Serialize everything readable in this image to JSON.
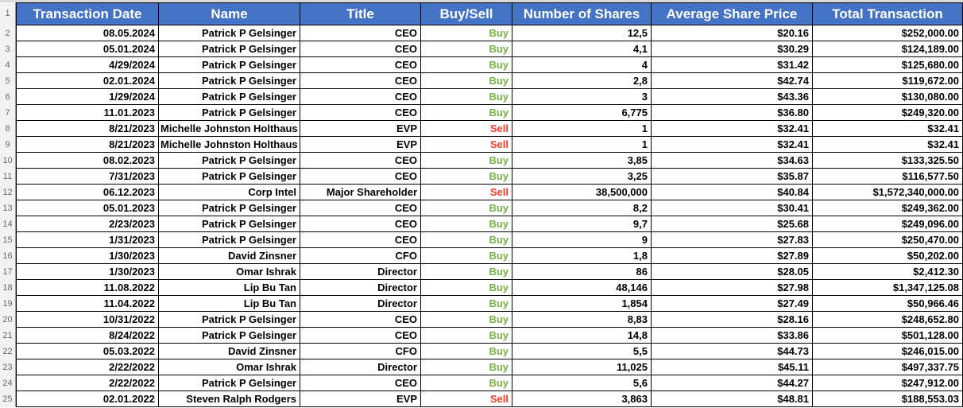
{
  "colors": {
    "header_bg": "#4472C4",
    "header_text": "#FFFFFF",
    "buy_text": "#74B244",
    "sell_text": "#FA3B26",
    "grid": "#000000",
    "gutter_bg": "#F2F2F2",
    "gutter_border": "#9A9A9A",
    "gutter_text": "#696969"
  },
  "table": {
    "header": {
      "row_num": "1",
      "cells": [
        "Transaction Date",
        "Name",
        "Title",
        "Buy/Sell",
        "Number of Shares",
        "Average Share Price",
        "Total Transaction"
      ]
    },
    "rows": [
      {
        "n": "2",
        "date": "08.05.2024",
        "name": "Patrick P Gelsinger",
        "title": "CEO",
        "side": "Buy",
        "shares": "12,5",
        "price": "$20.16",
        "total": "$252,000.00"
      },
      {
        "n": "3",
        "date": "05.01.2024",
        "name": "Patrick P Gelsinger",
        "title": "CEO",
        "side": "Buy",
        "shares": "4,1",
        "price": "$30.29",
        "total": "$124,189.00"
      },
      {
        "n": "4",
        "date": "4/29/2024",
        "name": "Patrick P Gelsinger",
        "title": "CEO",
        "side": "Buy",
        "shares": "4",
        "price": "$31.42",
        "total": "$125,680.00"
      },
      {
        "n": "5",
        "date": "02.01.2024",
        "name": "Patrick P Gelsinger",
        "title": "CEO",
        "side": "Buy",
        "shares": "2,8",
        "price": "$42.74",
        "total": "$119,672.00"
      },
      {
        "n": "6",
        "date": "1/29/2024",
        "name": "Patrick P Gelsinger",
        "title": "CEO",
        "side": "Buy",
        "shares": "3",
        "price": "$43.36",
        "total": "$130,080.00"
      },
      {
        "n": "7",
        "date": "11.01.2023",
        "name": "Patrick P Gelsinger",
        "title": "CEO",
        "side": "Buy",
        "shares": "6,775",
        "price": "$36.80",
        "total": "$249,320.00"
      },
      {
        "n": "8",
        "date": "8/21/2023",
        "name": "Michelle Johnston Holthaus",
        "title": "EVP",
        "side": "Sell",
        "shares": "1",
        "price": "$32.41",
        "total": "$32.41"
      },
      {
        "n": "9",
        "date": "8/21/2023",
        "name": "Michelle Johnston Holthaus",
        "title": "EVP",
        "side": "Sell",
        "shares": "1",
        "price": "$32.41",
        "total": "$32.41"
      },
      {
        "n": "10",
        "date": "08.02.2023",
        "name": "Patrick P Gelsinger",
        "title": "CEO",
        "side": "Buy",
        "shares": "3,85",
        "price": "$34.63",
        "total": "$133,325.50"
      },
      {
        "n": "11",
        "date": "7/31/2023",
        "name": "Patrick P Gelsinger",
        "title": "CEO",
        "side": "Buy",
        "shares": "3,25",
        "price": "$35.87",
        "total": "$116,577.50"
      },
      {
        "n": "12",
        "date": "06.12.2023",
        "name": "Corp Intel",
        "title": "Major Shareholder",
        "side": "Sell",
        "shares": "38,500,000",
        "price": "$40.84",
        "total": "$1,572,340,000.00"
      },
      {
        "n": "13",
        "date": "05.01.2023",
        "name": "Patrick P Gelsinger",
        "title": "CEO",
        "side": "Buy",
        "shares": "8,2",
        "price": "$30.41",
        "total": "$249,362.00"
      },
      {
        "n": "14",
        "date": "2/23/2023",
        "name": "Patrick P Gelsinger",
        "title": "CEO",
        "side": "Buy",
        "shares": "9,7",
        "price": "$25.68",
        "total": "$249,096.00"
      },
      {
        "n": "15",
        "date": "1/31/2023",
        "name": "Patrick P Gelsinger",
        "title": "CEO",
        "side": "Buy",
        "shares": "9",
        "price": "$27.83",
        "total": "$250,470.00"
      },
      {
        "n": "16",
        "date": "1/30/2023",
        "name": "David Zinsner",
        "title": "CFO",
        "side": "Buy",
        "shares": "1,8",
        "price": "$27.89",
        "total": "$50,202.00"
      },
      {
        "n": "17",
        "date": "1/30/2023",
        "name": "Omar Ishrak",
        "title": "Director",
        "side": "Buy",
        "shares": "86",
        "price": "$28.05",
        "total": "$2,412.30"
      },
      {
        "n": "18",
        "date": "11.08.2022",
        "name": "Lip Bu Tan",
        "title": "Director",
        "side": "Buy",
        "shares": "48,146",
        "price": "$27.98",
        "total": "$1,347,125.08"
      },
      {
        "n": "19",
        "date": "11.04.2022",
        "name": "Lip Bu Tan",
        "title": "Director",
        "side": "Buy",
        "shares": "1,854",
        "price": "$27.49",
        "total": "$50,966.46"
      },
      {
        "n": "20",
        "date": "10/31/2022",
        "name": "Patrick P Gelsinger",
        "title": "CEO",
        "side": "Buy",
        "shares": "8,83",
        "price": "$28.16",
        "total": "$248,652.80"
      },
      {
        "n": "21",
        "date": "8/24/2022",
        "name": "Patrick P Gelsinger",
        "title": "CEO",
        "side": "Buy",
        "shares": "14,8",
        "price": "$33.86",
        "total": "$501,128.00"
      },
      {
        "n": "22",
        "date": "05.03.2022",
        "name": "David Zinsner",
        "title": "CFO",
        "side": "Buy",
        "shares": "5,5",
        "price": "$44.73",
        "total": "$246,015.00"
      },
      {
        "n": "23",
        "date": "2/22/2022",
        "name": "Omar Ishrak",
        "title": "Director",
        "side": "Buy",
        "shares": "11,025",
        "price": "$45.11",
        "total": "$497,337.75"
      },
      {
        "n": "24",
        "date": "2/22/2022",
        "name": "Patrick P Gelsinger",
        "title": "CEO",
        "side": "Buy",
        "shares": "5,6",
        "price": "$44.27",
        "total": "$247,912.00"
      },
      {
        "n": "25",
        "date": "02.01.2022",
        "name": "Steven Ralph Rodgers",
        "title": "EVP",
        "side": "Sell",
        "shares": "3,863",
        "price": "$48.81",
        "total": "$188,553.03"
      }
    ]
  }
}
